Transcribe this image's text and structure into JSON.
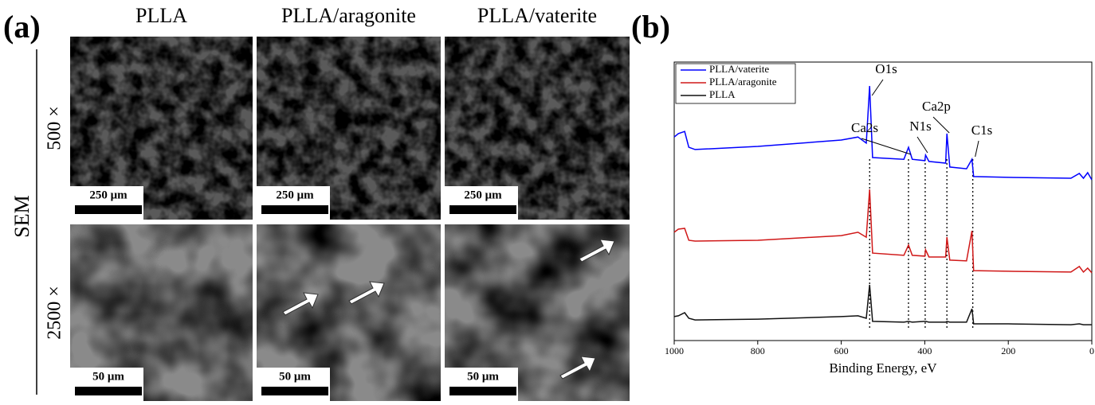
{
  "sem": {
    "panel_label": "(a)",
    "side_label": "SEM",
    "columns": [
      "PLLA",
      "PLLA/aragonite",
      "PLLA/vaterite"
    ],
    "rows": [
      {
        "label": "500 ×",
        "scale_bars": [
          "250 μm",
          "250 μm",
          "250 μm"
        ]
      },
      {
        "label": "2500 ×",
        "scale_bars": [
          "50 μm",
          "50 μm",
          "50 μm"
        ]
      }
    ]
  },
  "chart_data": {
    "type": "line",
    "panel_label": "(b)",
    "xlabel": "Binding Energy, eV",
    "x": [
      1000,
      990,
      975,
      965,
      950,
      800,
      600,
      560,
      540,
      532,
      525,
      450,
      439,
      430,
      400,
      398,
      390,
      350,
      347,
      340,
      300,
      287,
      283,
      200,
      50,
      30,
      20,
      10,
      0
    ],
    "series": [
      {
        "name": "PLLA/vaterite",
        "color": "#0000ff",
        "values": [
          73.1,
          74.3,
          75.1,
          69.4,
          68.6,
          69.7,
          72.0,
          73.1,
          70.9,
          91.4,
          65.7,
          65.1,
          69.4,
          65.1,
          64.6,
          66.6,
          64.3,
          63.7,
          74.3,
          62.3,
          61.7,
          65.1,
          58.9,
          58.6,
          58.3,
          60.0,
          58.3,
          60.3,
          57.7
        ]
      },
      {
        "name": "PLLA/aragonite",
        "color": "#d01818",
        "values": [
          38.9,
          40.0,
          40.3,
          36.0,
          35.7,
          36.0,
          37.7,
          38.9,
          37.1,
          54.3,
          31.4,
          30.6,
          34.3,
          30.6,
          30.3,
          32.6,
          30.0,
          30.0,
          37.1,
          28.9,
          28.6,
          39.4,
          25.1,
          24.9,
          24.6,
          26.6,
          24.6,
          26.0,
          24.3
        ]
      },
      {
        "name": "PLLA",
        "color": "#111111",
        "values": [
          8.6,
          8.9,
          10.0,
          8.0,
          7.4,
          7.7,
          8.6,
          8.9,
          8.0,
          20.0,
          6.9,
          6.6,
          6.9,
          6.6,
          6.9,
          6.9,
          6.6,
          6.6,
          6.9,
          6.6,
          6.6,
          11.4,
          6.0,
          6.0,
          5.7,
          6.0,
          5.7,
          5.7,
          5.7
        ]
      }
    ],
    "xlim": [
      1000,
      0
    ],
    "xticks": [
      1000,
      800,
      600,
      400,
      200,
      0
    ],
    "ylim": [
      0,
      100
    ],
    "legend": "upper left",
    "annotations": [
      {
        "text": "O1s",
        "x": 532
      },
      {
        "text": "Ca2s",
        "x": 439
      },
      {
        "text": "N1s",
        "x": 399
      },
      {
        "text": "Ca2p",
        "x": 347
      },
      {
        "text": "C1s",
        "x": 285
      }
    ]
  }
}
